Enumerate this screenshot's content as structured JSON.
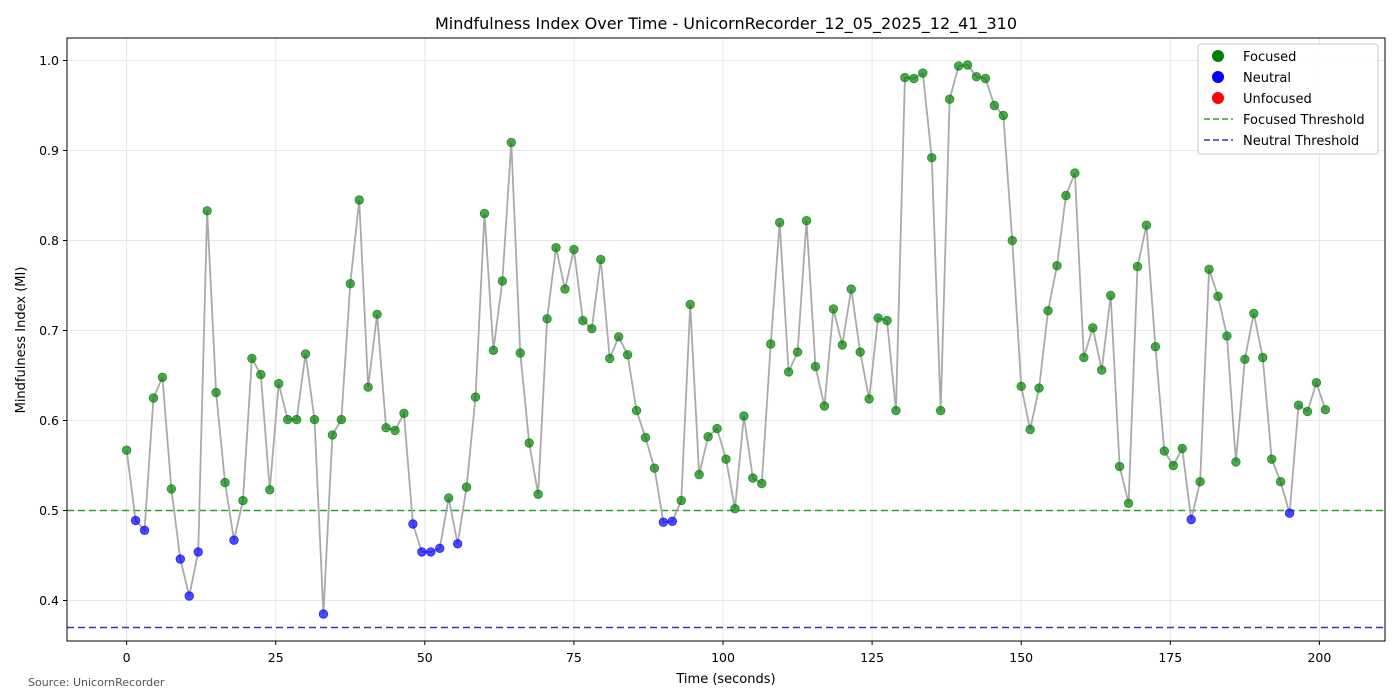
{
  "chart_data": {
    "type": "line",
    "title": "Mindfulness Index Over Time - UnicornRecorder_12_05_2025_12_41_310",
    "xlabel": "Time (seconds)",
    "ylabel": "Mindfulness Index (MI)",
    "xlim": [
      -10,
      211
    ],
    "ylim": [
      0.355,
      1.025
    ],
    "x_ticks": [
      0,
      25,
      50,
      75,
      100,
      125,
      150,
      175,
      200
    ],
    "y_ticks": [
      0.4,
      0.5,
      0.6,
      0.7,
      0.8,
      0.9,
      1.0
    ],
    "grid": true,
    "legend_position": "top-right",
    "colors": {
      "line": "#aaaaaa",
      "focused": "#008000",
      "neutral": "#0000ff",
      "unfocused": "#ff0000",
      "focused_threshold": "#2ca02c",
      "neutral_threshold": "#3333cc"
    },
    "thresholds": [
      {
        "name": "Focused Threshold",
        "value": 0.5,
        "color": "#2ca02c"
      },
      {
        "name": "Neutral Threshold",
        "value": 0.37,
        "color": "#3333cc"
      }
    ],
    "legend": [
      {
        "label": "Focused",
        "kind": "marker",
        "color": "#008000"
      },
      {
        "label": "Neutral",
        "kind": "marker",
        "color": "#0000ff"
      },
      {
        "label": "Unfocused",
        "kind": "marker",
        "color": "#ff0000"
      },
      {
        "label": "Focused Threshold",
        "kind": "dash",
        "color": "#2ca02c"
      },
      {
        "label": "Neutral Threshold",
        "kind": "dash",
        "color": "#3333cc"
      }
    ],
    "x": [
      0,
      1.5,
      3.0,
      4.5,
      6.0,
      7.5,
      9.0,
      10.5,
      12.0,
      13.5,
      15.0,
      16.5,
      18.0,
      19.5,
      21.0,
      22.5,
      24.0,
      25.5,
      27.0,
      28.5,
      30.0,
      31.5,
      33.0,
      34.5,
      36.0,
      37.5,
      39.0,
      40.5,
      42.0,
      43.5,
      45.0,
      46.5,
      48.0,
      49.5,
      51.0,
      52.5,
      54.0,
      55.5,
      57.0,
      58.5,
      60.0,
      61.5,
      63.0,
      64.5,
      66.0,
      67.5,
      69.0,
      70.5,
      72.0,
      73.5,
      75.0,
      76.5,
      78.0,
      79.5,
      81.0,
      82.5,
      84.0,
      85.5,
      87.0,
      88.5,
      90.0,
      91.5,
      93.0,
      94.5,
      96.0,
      97.5,
      99.0,
      100.5,
      102.0,
      103.5,
      105.0,
      106.5,
      108.0,
      109.5,
      111.0,
      112.5,
      114.0,
      115.5,
      117.0,
      118.5,
      120.0,
      121.5,
      123.0,
      124.5,
      126.0,
      127.5,
      129.0,
      130.5,
      132.0,
      133.5,
      135.0,
      136.5,
      138.0,
      139.5,
      141.0,
      142.5,
      144.0,
      145.5,
      147.0,
      148.5,
      150.0,
      151.5,
      153.0,
      154.5,
      156.0,
      157.5,
      159.0,
      160.5,
      162.0,
      163.5,
      165.0,
      166.5,
      168.0,
      169.5,
      171.0,
      172.5,
      174.0,
      175.5,
      177.0,
      178.5,
      180.0,
      181.5,
      183.0,
      184.5,
      186.0,
      187.5,
      189.0,
      190.5,
      192.0,
      193.5,
      195.0,
      196.5,
      198.0,
      199.5,
      201.0
    ],
    "y": [
      0.567,
      0.489,
      0.478,
      0.625,
      0.648,
      0.524,
      0.446,
      0.405,
      0.454,
      0.833,
      0.631,
      0.531,
      0.467,
      0.511,
      0.669,
      0.651,
      0.523,
      0.641,
      0.601,
      0.601,
      0.674,
      0.601,
      0.385,
      0.584,
      0.601,
      0.752,
      0.845,
      0.637,
      0.718,
      0.592,
      0.589,
      0.608,
      0.485,
      0.454,
      0.454,
      0.458,
      0.514,
      0.463,
      0.526,
      0.626,
      0.83,
      0.678,
      0.755,
      0.909,
      0.675,
      0.575,
      0.518,
      0.713,
      0.792,
      0.746,
      0.79,
      0.711,
      0.702,
      0.779,
      0.669,
      0.693,
      0.673,
      0.611,
      0.581,
      0.547,
      0.487,
      0.488,
      0.511,
      0.729,
      0.54,
      0.582,
      0.591,
      0.557,
      0.502,
      0.605,
      0.536,
      0.53,
      0.685,
      0.82,
      0.654,
      0.676,
      0.822,
      0.66,
      0.616,
      0.724,
      0.684,
      0.746,
      0.676,
      0.624,
      0.714,
      0.711,
      0.611,
      0.981,
      0.98,
      0.986,
      0.892,
      0.611,
      0.957,
      0.994,
      0.995,
      0.982,
      0.98,
      0.95,
      0.939,
      0.8,
      0.638,
      0.59,
      0.636,
      0.722,
      0.772,
      0.85,
      0.875,
      0.67,
      0.703,
      0.656,
      0.739,
      0.549,
      0.508,
      0.771,
      0.817,
      0.682,
      0.566,
      0.55,
      0.569,
      0.49,
      0.532,
      0.768,
      0.738,
      0.694,
      0.554,
      0.668,
      0.719,
      0.67,
      0.557,
      0.532,
      0.497,
      0.617,
      0.61,
      0.642,
      0.612
    ]
  },
  "footer": {
    "source_text": "Source: UnicornRecorder"
  }
}
